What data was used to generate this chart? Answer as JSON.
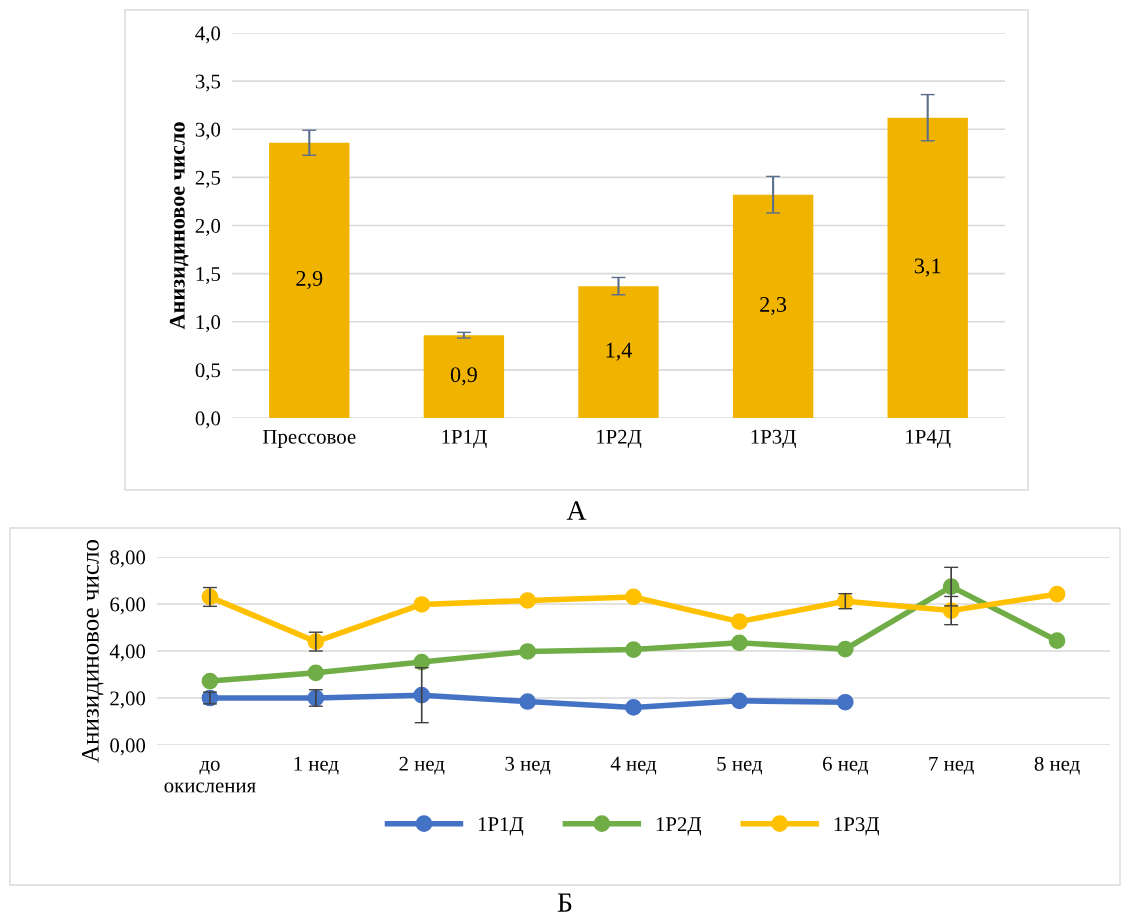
{
  "chart_data": [
    {
      "type": "bar",
      "ylabel": "Анизидиновое число",
      "categories": [
        "Прессовое",
        "1Р1Д",
        "1Р2Д",
        "1Р3Д",
        "1Р4Д"
      ],
      "values": [
        2.86,
        0.86,
        1.37,
        2.32,
        3.12
      ],
      "errors": [
        0.13,
        0.03,
        0.09,
        0.19,
        0.24
      ],
      "value_labels": [
        "2,9",
        "0,9",
        "1,4",
        "2,3",
        "3,1"
      ],
      "color": "#f0b400",
      "ylim": [
        0,
        4
      ],
      "yticks": [
        {
          "value": 0,
          "label": "0,0"
        },
        {
          "value": 0.5,
          "label": "0,5"
        },
        {
          "value": 1,
          "label": "1,0"
        },
        {
          "value": 1.5,
          "label": "1,5"
        },
        {
          "value": 2,
          "label": "2,0"
        },
        {
          "value": 2.5,
          "label": "2,5"
        },
        {
          "value": 3,
          "label": "3,0"
        },
        {
          "value": 3.5,
          "label": "3,5"
        },
        {
          "value": 4,
          "label": "4,0"
        }
      ],
      "grid": "y",
      "annotations": [
        "А"
      ]
    },
    {
      "type": "line",
      "ylabel": "Анизидиновое число",
      "categories": [
        "до\nокисления",
        "1 нед",
        "2 нед",
        "3 нед",
        "4 нед",
        "5 нед",
        "6 нед",
        "7 нед",
        "8 нед"
      ],
      "series": [
        {
          "name": "1Р1Д",
          "color": "#4472c4",
          "values": [
            2.0,
            2.0,
            2.12,
            1.85,
            1.6,
            1.88,
            1.82,
            null,
            null
          ],
          "errors": [
            0.25,
            0.35,
            1.17,
            null,
            null,
            null,
            null,
            null,
            null
          ]
        },
        {
          "name": "1Р2Д",
          "color": "#70ad47",
          "values": [
            2.72,
            3.07,
            3.53,
            3.98,
            4.06,
            4.35,
            4.08,
            6.74,
            4.44
          ],
          "errors": [
            null,
            null,
            null,
            null,
            null,
            null,
            null,
            0.82,
            null
          ]
        },
        {
          "name": "1Р3Д",
          "color": "#ffc000",
          "values": [
            6.3,
            4.4,
            5.98,
            6.15,
            6.3,
            5.25,
            6.12,
            5.72,
            6.42
          ],
          "errors": [
            0.4,
            0.4,
            null,
            null,
            null,
            null,
            0.32,
            0.6,
            null
          ]
        }
      ],
      "ylim": [
        0,
        8
      ],
      "yticks": [
        {
          "value": 0,
          "label": "0,00"
        },
        {
          "value": 2,
          "label": "2,00"
        },
        {
          "value": 4,
          "label": "4,00"
        },
        {
          "value": 6,
          "label": "6,00"
        },
        {
          "value": 8,
          "label": "8,00"
        }
      ],
      "grid": "y",
      "legend": "bottom",
      "marker": "circle",
      "line_style": "solid",
      "annotations": [
        "Б"
      ]
    }
  ]
}
